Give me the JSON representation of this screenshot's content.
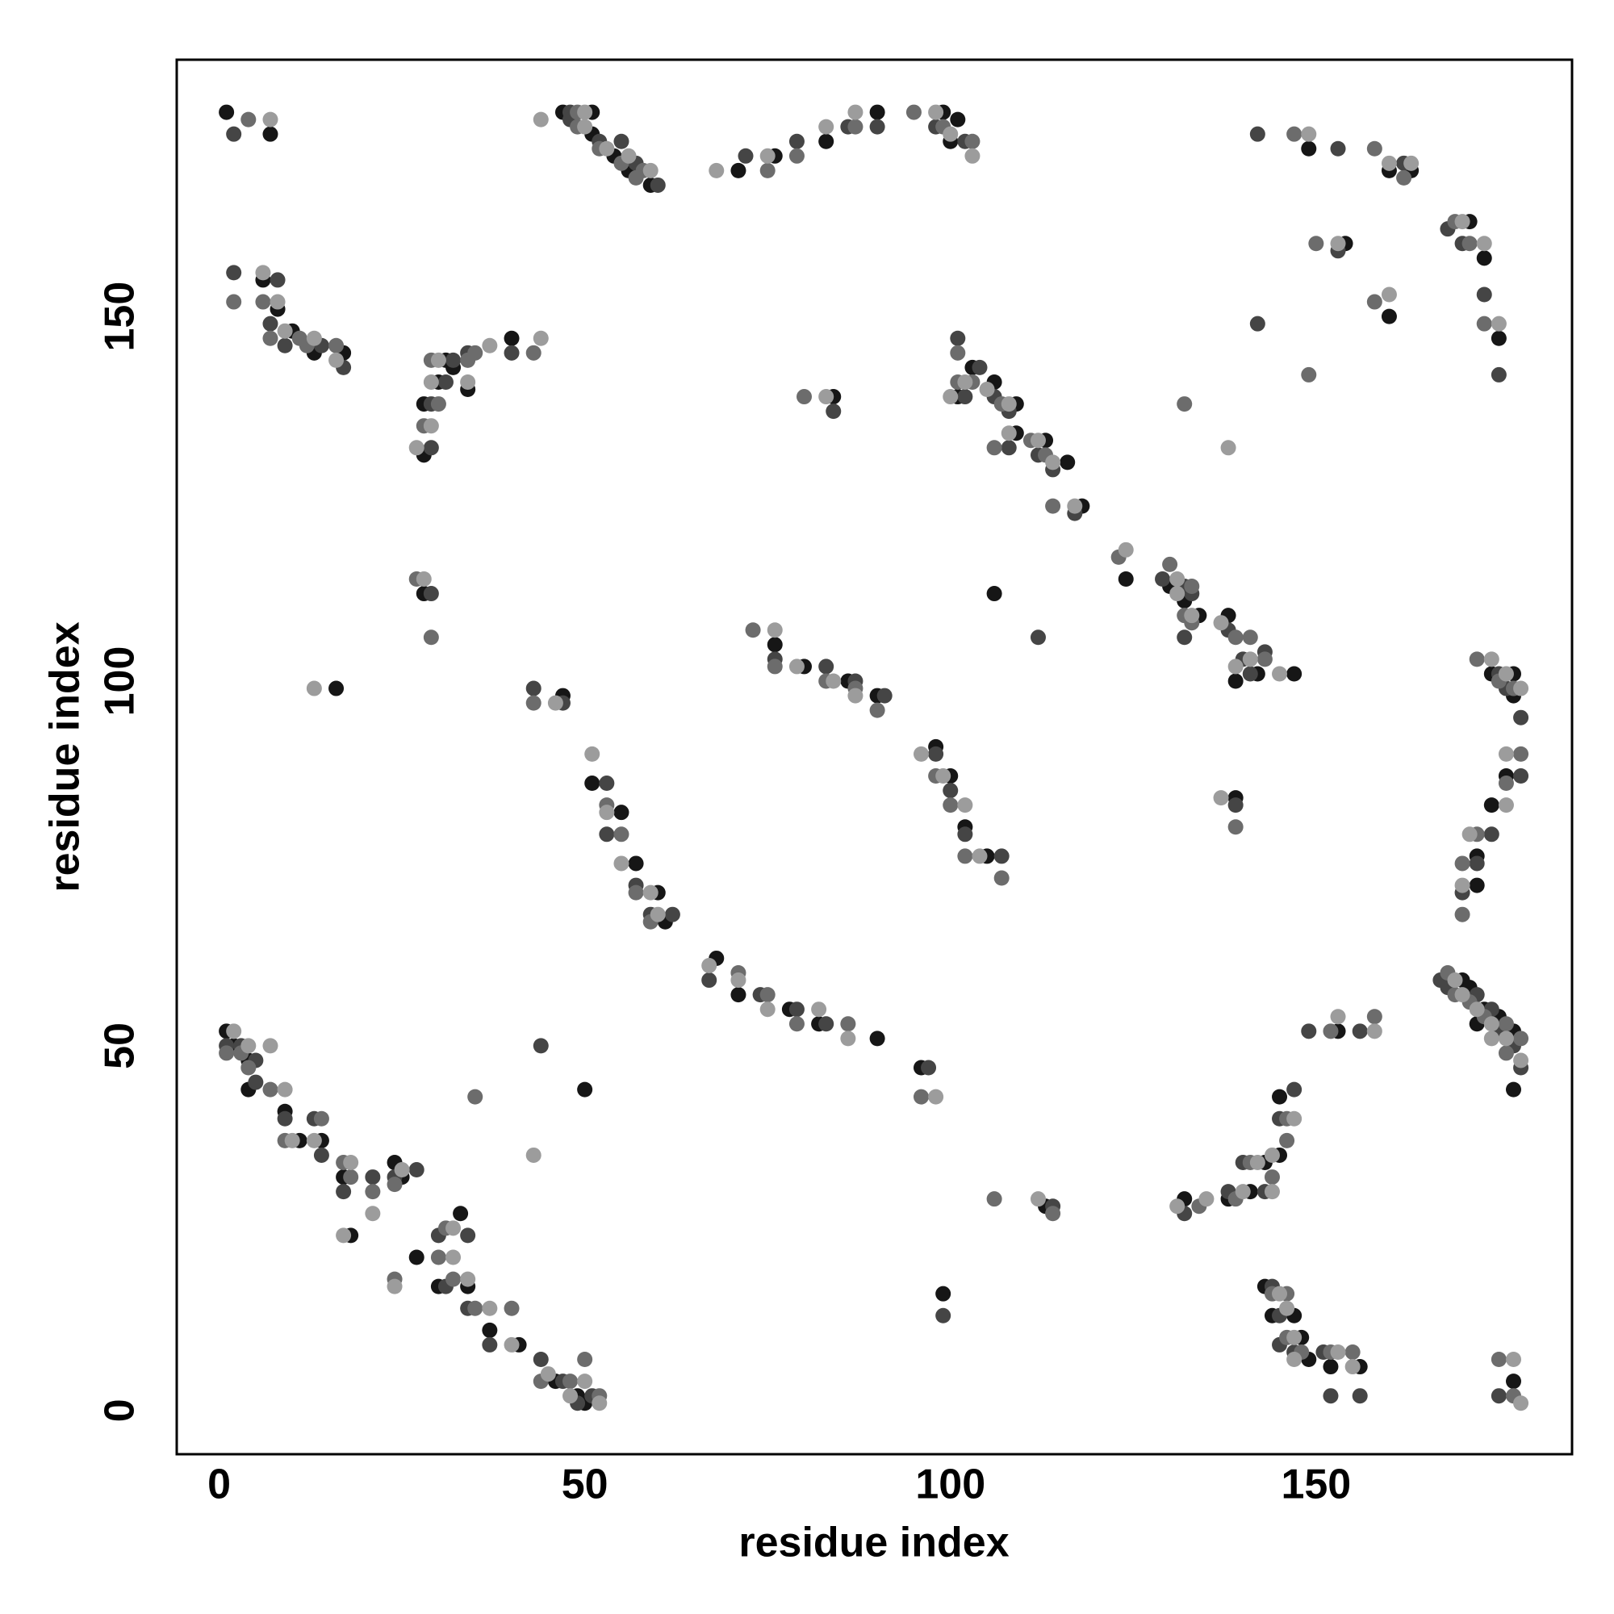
{
  "chart_data": {
    "type": "scatter",
    "xlabel": "residue index",
    "ylabel": "residue index",
    "xlim": [
      -5.8,
      185
    ],
    "ylim": [
      -6,
      185.2
    ],
    "xticks": [
      0,
      50,
      100,
      150
    ],
    "yticks": [
      0,
      50,
      100,
      150
    ],
    "grid": false,
    "series": [
      {
        "color": "#161616",
        "x": [
          1,
          7,
          6,
          8,
          10,
          13,
          17,
          47,
          51,
          51,
          54,
          56,
          59,
          71,
          76,
          83,
          90,
          99,
          101,
          100,
          149,
          160,
          163,
          171,
          173,
          175,
          154,
          160,
          28,
          28,
          30,
          31,
          34,
          40,
          32,
          101,
          103,
          106,
          109,
          109,
          113,
          116,
          118,
          84,
          106,
          124,
          130,
          132,
          134,
          138,
          139,
          142,
          147,
          28,
          16,
          47,
          76,
          80,
          86,
          90,
          98,
          100,
          102,
          105,
          51,
          55,
          57,
          60,
          61,
          174,
          177,
          177,
          176,
          174,
          172,
          172,
          139,
          68,
          71,
          78,
          82,
          90,
          170,
          171,
          173,
          175,
          177,
          177,
          172,
          153,
          96,
          50,
          1,
          2,
          4,
          4,
          9,
          11,
          14,
          17,
          18,
          24,
          25,
          27,
          33,
          30,
          34,
          37,
          41,
          46,
          49,
          50,
          99,
          113,
          132,
          138,
          141,
          143,
          145,
          145,
          143,
          144,
          147,
          148,
          149,
          152,
          156,
          177
        ],
        "values": [
          178,
          175,
          155,
          151,
          148,
          145,
          145,
          178,
          178,
          175,
          172,
          170,
          168,
          170,
          172,
          174,
          178,
          178,
          177,
          174,
          173,
          170,
          170,
          163,
          158,
          147,
          160,
          150,
          131,
          138,
          141,
          144,
          140,
          147,
          143,
          139,
          143,
          141,
          138,
          134,
          133,
          130,
          124,
          139,
          112,
          114,
          113,
          111,
          109,
          109,
          100,
          101,
          101,
          112,
          99,
          98,
          105,
          102,
          100,
          98,
          91,
          87,
          80,
          76,
          86,
          82,
          75,
          71,
          67,
          101,
          101,
          98,
          87,
          83,
          76,
          72,
          84,
          62,
          57,
          55,
          53,
          51,
          59,
          58,
          55,
          54,
          52,
          44,
          53,
          52,
          47,
          44,
          52,
          50,
          48,
          44,
          41,
          37,
          37,
          32,
          24,
          34,
          32,
          21,
          27,
          17,
          17,
          11,
          9,
          4,
          2,
          1,
          16,
          28,
          29,
          29,
          30,
          34,
          35,
          43,
          17,
          13,
          13,
          10,
          7,
          6,
          6,
          4
        ]
      },
      {
        "color": "#454545",
        "x": [
          2,
          2,
          8,
          7,
          9,
          14,
          17,
          48,
          48,
          52,
          55,
          57,
          60,
          72,
          79,
          86,
          90,
          98,
          102,
          142,
          153,
          162,
          168,
          170,
          173,
          175,
          153,
          142,
          29,
          29,
          31,
          32,
          34,
          40,
          101,
          102,
          104,
          106,
          108,
          108,
          112,
          114,
          117,
          84,
          112,
          129,
          132,
          133,
          132,
          138,
          140,
          143,
          141,
          29,
          43,
          47,
          76,
          83,
          87,
          91,
          98,
          100,
          102,
          107,
          53,
          53,
          57,
          59,
          62,
          175,
          176,
          178,
          178,
          174,
          172,
          170,
          139,
          67,
          74,
          79,
          83,
          167,
          168,
          172,
          174,
          175,
          177,
          178,
          149,
          156,
          97,
          44,
          1,
          3,
          5,
          5,
          9,
          13,
          14,
          17,
          21,
          24,
          27,
          30,
          34,
          31,
          34,
          37,
          44,
          47,
          49,
          51,
          99,
          114,
          132,
          138,
          140,
          143,
          145,
          147,
          144,
          145,
          145,
          147,
          151,
          152,
          156,
          175
        ],
        "values": [
          175,
          156,
          155,
          149,
          146,
          146,
          143,
          178,
          177,
          174,
          174,
          171,
          168,
          172,
          174,
          176,
          176,
          176,
          174,
          175,
          173,
          171,
          162,
          160,
          153,
          142,
          159,
          149,
          132,
          138,
          141,
          144,
          145,
          145,
          147,
          139,
          143,
          139,
          137,
          132,
          131,
          129,
          123,
          137,
          106,
          114,
          113,
          112,
          106,
          107,
          103,
          104,
          101,
          112,
          99,
          97,
          103,
          102,
          100,
          98,
          90,
          85,
          79,
          76,
          86,
          79,
          72,
          68,
          68,
          101,
          99,
          95,
          87,
          79,
          75,
          71,
          83,
          59,
          57,
          55,
          53,
          59,
          58,
          57,
          55,
          52,
          50,
          47,
          52,
          52,
          47,
          50,
          50,
          50,
          48,
          45,
          40,
          40,
          35,
          30,
          32,
          32,
          33,
          24,
          24,
          17,
          14,
          9,
          7,
          4,
          1,
          2,
          13,
          28,
          27,
          30,
          34,
          30,
          40,
          44,
          17,
          13,
          9,
          8,
          8,
          2,
          2,
          2
        ]
      },
      {
        "color": "#6c6c6c",
        "x": [
          4,
          2,
          6,
          7,
          11,
          16,
          12,
          49,
          49,
          52,
          55,
          58,
          57,
          75,
          79,
          87,
          95,
          99,
          103,
          147,
          158,
          162,
          169,
          171,
          173,
          150,
          158,
          149,
          28,
          30,
          29,
          34,
          35,
          43,
          101,
          101,
          103,
          107,
          106,
          111,
          113,
          114,
          80,
          132,
          123,
          130,
          133,
          132,
          133,
          139,
          141,
          143,
          27,
          29,
          43,
          73,
          76,
          83,
          87,
          90,
          98,
          100,
          102,
          107,
          53,
          55,
          57,
          59,
          172,
          175,
          177,
          178,
          176,
          172,
          170,
          170,
          139,
          71,
          75,
          79,
          86,
          168,
          169,
          171,
          173,
          176,
          178,
          176,
          152,
          158,
          96,
          35,
          1,
          3,
          4,
          7,
          9,
          14,
          17,
          18,
          21,
          24,
          24,
          31,
          30,
          32,
          35,
          40,
          44,
          48,
          50,
          52,
          106,
          114,
          134,
          139,
          141,
          144,
          146,
          146,
          144,
          146,
          146,
          148,
          152,
          155,
          175,
          177
        ],
        "values": [
          177,
          152,
          152,
          147,
          147,
          146,
          146,
          178,
          176,
          173,
          171,
          170,
          169,
          170,
          172,
          176,
          178,
          176,
          174,
          175,
          173,
          169,
          163,
          160,
          149,
          160,
          152,
          142,
          135,
          138,
          144,
          144,
          145,
          145,
          145,
          141,
          141,
          138,
          132,
          133,
          131,
          124,
          139,
          138,
          117,
          116,
          113,
          109,
          108,
          106,
          106,
          103,
          114,
          106,
          97,
          107,
          102,
          100,
          99,
          96,
          87,
          83,
          76,
          73,
          83,
          79,
          71,
          67,
          103,
          100,
          99,
          90,
          86,
          79,
          75,
          68,
          80,
          60,
          57,
          53,
          53,
          60,
          57,
          56,
          54,
          53,
          51,
          49,
          52,
          54,
          43,
          43,
          49,
          49,
          47,
          44,
          37,
          40,
          34,
          32,
          30,
          31,
          18,
          25,
          21,
          18,
          14,
          14,
          4,
          4,
          7,
          2,
          29,
          27,
          28,
          29,
          34,
          32,
          40,
          37,
          16,
          16,
          10,
          8,
          8,
          8,
          7,
          2
        ]
      },
      {
        "color": "#9c9c9c",
        "x": [
          7,
          6,
          8,
          9,
          13,
          16,
          44,
          50,
          50,
          53,
          56,
          59,
          68,
          75,
          83,
          87,
          98,
          100,
          103,
          149,
          160,
          163,
          170,
          173,
          175,
          153,
          160,
          27,
          29,
          29,
          30,
          34,
          37,
          44,
          100,
          102,
          105,
          108,
          108,
          112,
          114,
          117,
          83,
          138,
          124,
          131,
          131,
          133,
          137,
          139,
          141,
          145,
          28,
          13,
          46,
          76,
          79,
          84,
          87,
          96,
          99,
          102,
          104,
          51,
          53,
          55,
          59,
          60,
          174,
          176,
          178,
          176,
          176,
          171,
          170,
          137,
          67,
          71,
          75,
          82,
          86,
          169,
          170,
          172,
          174,
          176,
          178,
          174,
          153,
          158,
          98,
          43,
          2,
          4,
          7,
          9,
          10,
          13,
          18,
          17,
          21,
          25,
          24,
          32,
          32,
          34,
          37,
          40,
          45,
          48,
          50,
          52,
          112,
          131,
          135,
          140,
          142,
          144,
          147,
          144,
          145,
          146,
          147,
          147,
          153,
          155,
          177,
          178
        ],
        "values": [
          177,
          156,
          152,
          148,
          147,
          144,
          177,
          178,
          176,
          173,
          172,
          170,
          170,
          172,
          176,
          178,
          178,
          175,
          172,
          175,
          171,
          171,
          163,
          160,
          149,
          160,
          153,
          132,
          135,
          141,
          144,
          141,
          146,
          147,
          139,
          141,
          140,
          138,
          134,
          133,
          130,
          124,
          139,
          132,
          118,
          114,
          112,
          109,
          108,
          102,
          103,
          101,
          114,
          99,
          97,
          107,
          102,
          100,
          98,
          90,
          87,
          83,
          76,
          90,
          82,
          75,
          71,
          68,
          103,
          101,
          99,
          90,
          83,
          79,
          72,
          84,
          61,
          59,
          55,
          55,
          51,
          59,
          57,
          55,
          53,
          51,
          48,
          51,
          54,
          52,
          43,
          35,
          52,
          50,
          50,
          44,
          37,
          37,
          34,
          24,
          27,
          33,
          17,
          25,
          21,
          18,
          14,
          9,
          5,
          2,
          4,
          1,
          29,
          28,
          29,
          30,
          34,
          35,
          40,
          30,
          16,
          14,
          10,
          7,
          8,
          6,
          7,
          1
        ]
      }
    ]
  }
}
